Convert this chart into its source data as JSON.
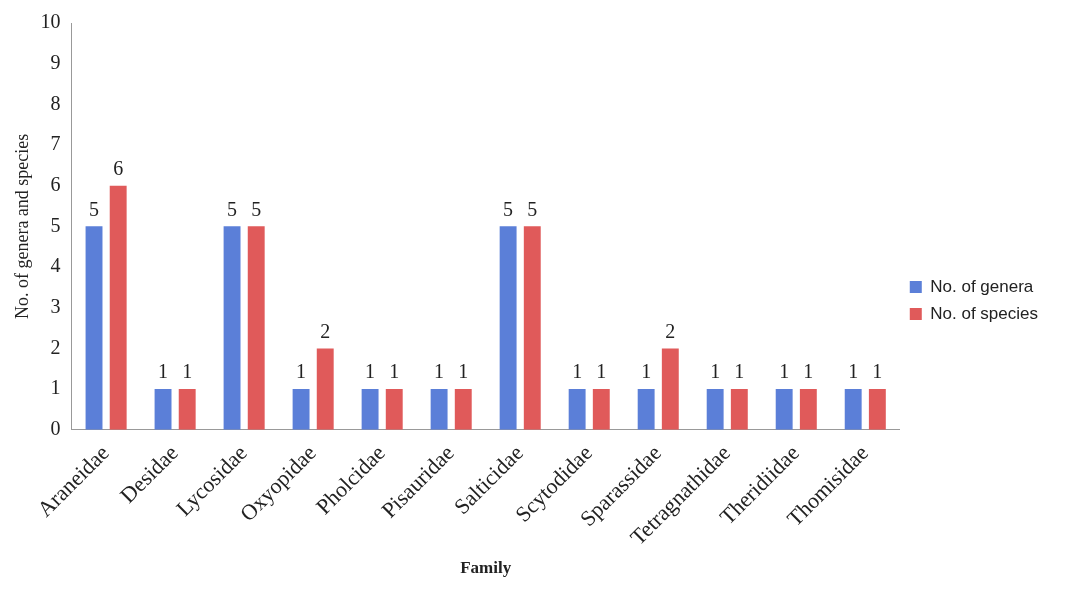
{
  "chart_data": {
    "type": "bar",
    "xlabel": "Family",
    "ylabel": "No. of genera and species",
    "categories": [
      "Araneidae",
      "Desidae",
      "Lycosidae",
      "Oxyopidae",
      "Pholcidae",
      "Pisauridae",
      "Salticidae",
      "Scytodidae",
      "Sparassidae",
      "Tetragnathidae",
      "Theridiidae",
      "Thomisidae"
    ],
    "series": [
      {
        "name": "No. of genera",
        "color": "#5b7fd8",
        "values": [
          5,
          1,
          5,
          1,
          1,
          1,
          5,
          1,
          1,
          1,
          1,
          1
        ]
      },
      {
        "name": "No. of species",
        "color": "#e05a5a",
        "values": [
          6,
          1,
          5,
          2,
          1,
          1,
          5,
          1,
          2,
          1,
          1,
          1
        ]
      }
    ],
    "ylim": [
      0,
      10
    ],
    "yticks": [
      0,
      1,
      2,
      3,
      4,
      5,
      6,
      7,
      8,
      9,
      10
    ],
    "grid": false,
    "legend": "right",
    "data_labels": true
  }
}
